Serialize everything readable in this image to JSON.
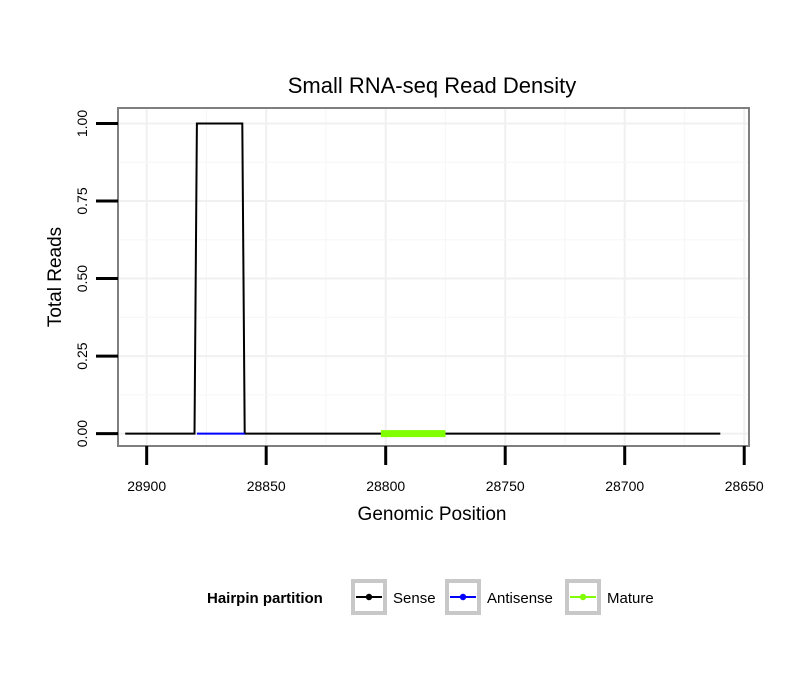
{
  "chart_data": {
    "type": "line",
    "title": "Small RNA-seq Read Density",
    "xlabel": "Genomic Position",
    "ylabel": "Total Reads",
    "xlim": [
      28912,
      28648
    ],
    "x_reversed": true,
    "ylim": [
      -0.04,
      1.05
    ],
    "grid": true,
    "x_ticks": [
      28900,
      28850,
      28800,
      28750,
      28700,
      28650
    ],
    "x_tick_labels": [
      "28900",
      "28850",
      "28800",
      "28750",
      "28700",
      "28650"
    ],
    "y_ticks": [
      0,
      0.25,
      0.5,
      0.75,
      1
    ],
    "y_tick_labels": [
      "0.00",
      "0.25",
      "0.50",
      "0.75",
      "1.00"
    ],
    "legend": {
      "title": "Hairpin partition",
      "position": "bottom",
      "entries": [
        {
          "label": "Sense",
          "color": "#000000"
        },
        {
          "label": "Antisense",
          "color": "#0000ff"
        },
        {
          "label": "Mature",
          "color": "#7fff00"
        }
      ]
    },
    "series": [
      {
        "name": "Sense",
        "color": "#000000",
        "stroke_width": 2,
        "x": [
          28909,
          28880,
          28879,
          28860,
          28859,
          28660
        ],
        "y": [
          0,
          0,
          1,
          1,
          0,
          0
        ]
      },
      {
        "name": "Antisense",
        "color": "#0000ff",
        "stroke_width": 2,
        "x": [
          28879,
          28859
        ],
        "y": [
          0,
          0
        ]
      },
      {
        "name": "Mature",
        "color": "#7fff00",
        "stroke_width": 7,
        "x": [
          28802,
          28775
        ],
        "y": [
          0,
          0
        ]
      }
    ]
  }
}
